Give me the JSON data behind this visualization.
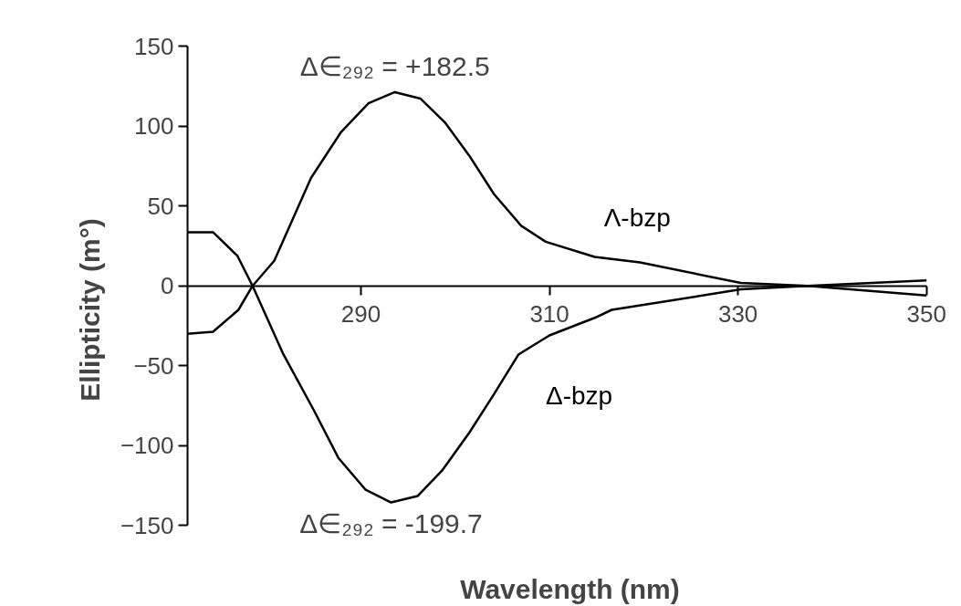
{
  "chart_data": {
    "type": "line",
    "xlabel": "Wavelength (nm)",
    "ylabel": "Ellipticity (m°)",
    "xlim": [
      271.6,
      350
    ],
    "xticks": [
      290,
      310,
      330,
      350
    ],
    "ylim": [
      -150,
      150
    ],
    "yticks": [
      -150,
      -100,
      -50,
      0,
      50,
      100,
      150
    ],
    "grid": false,
    "legend": false,
    "marker": "none",
    "line_style": "solid",
    "series": [
      {
        "name": "Λ-bzp",
        "color": "#000000",
        "x": [
          271.6,
          274.3,
          277,
          278.5,
          280.8,
          284.7,
          287.9,
          290.8,
          293.6,
          296.3,
          298.9,
          301.5,
          304.1,
          307,
          309.6,
          314.8,
          319.6,
          330.3,
          337.4,
          350
        ],
        "values": [
          -30,
          -28.7,
          -15,
          0,
          15.7,
          67.5,
          96.3,
          114.2,
          121.2,
          117.2,
          102.3,
          81.4,
          57.5,
          37.6,
          27.6,
          18.1,
          14.7,
          1.8,
          0,
          -6
        ]
      },
      {
        "name": "Δ-bzp",
        "color": "#000000",
        "x": [
          271.6,
          274.3,
          276.9,
          278.5,
          281.7,
          285,
          287.6,
          290.5,
          293.2,
          296,
          298.6,
          301.5,
          304.1,
          306.7,
          310,
          314.8,
          316.6,
          330.3,
          337.4,
          350
        ],
        "values": [
          33.6,
          33.6,
          18.7,
          0,
          -42,
          -77.8,
          -107.6,
          -127.6,
          -135.5,
          -131.5,
          -115.6,
          -91.8,
          -67.9,
          -43,
          -31,
          -20,
          -15,
          -2.2,
          0,
          3.4
        ]
      }
    ],
    "annotations": [
      {
        "text": "Δ∈₂₉₂ = +182.5",
        "x": 293.6,
        "y": 121.2
      },
      {
        "text": "Δ∈₂₉₂ = -199.7",
        "x": 293.2,
        "y": -135.5
      }
    ]
  }
}
